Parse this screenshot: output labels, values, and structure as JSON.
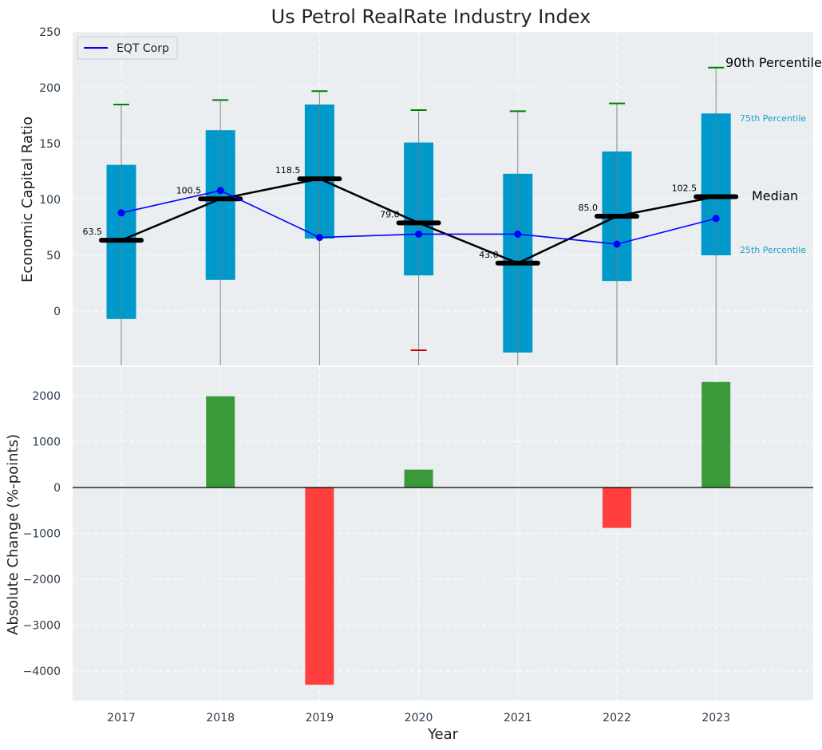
{
  "chart_data": [
    {
      "type": "box",
      "title": "Us Petrol RealRate Industry Index",
      "xlabel": "",
      "ylabel": "Economic Capital Ratio",
      "categories": [
        "2017",
        "2018",
        "2019",
        "2020",
        "2021",
        "2022",
        "2023"
      ],
      "ylim": [
        -48,
        250
      ],
      "yticks": [
        0,
        50,
        100,
        150,
        200,
        250
      ],
      "grid": true,
      "legend": {
        "position": "top-left",
        "entries": [
          "EQT Corp"
        ]
      },
      "boxes": {
        "q1": [
          -7,
          28,
          65,
          32,
          -37,
          27,
          50
        ],
        "q3": [
          131,
          162,
          185,
          151,
          123,
          143,
          177
        ],
        "median": [
          63.5,
          100.5,
          118.5,
          79.0,
          43.0,
          85.0,
          102.5
        ],
        "p90": [
          185,
          189,
          197,
          180,
          179,
          186,
          218
        ],
        "p10": [
          null,
          null,
          null,
          -35,
          null,
          null,
          null
        ],
        "median_labels": [
          "63.5",
          "100.5",
          "118.5",
          "79.0",
          "43.0",
          "85.0",
          "102.5"
        ]
      },
      "series": [
        {
          "name": "EQT Corp",
          "values": [
            88,
            108,
            66,
            69,
            69,
            60,
            83
          ],
          "color": "#0000ff"
        }
      ],
      "annotations": {
        "p90": "90th Percentile",
        "p75": "75th Percentile",
        "median": "Median",
        "p25": "25th Percentile"
      },
      "colors": {
        "box": "#0099cc",
        "median": "#000000",
        "whisker_top": "#008000",
        "whisker_bottom": "#cc0000"
      }
    },
    {
      "type": "bar",
      "xlabel": "Year",
      "ylabel": "Absolute Change (%-points)",
      "categories": [
        "2017",
        "2018",
        "2019",
        "2020",
        "2021",
        "2022",
        "2023"
      ],
      "values": [
        0,
        1990,
        -4300,
        390,
        0,
        -880,
        2300
      ],
      "ylim": [
        -4600,
        2600
      ],
      "yticks": [
        -4000,
        -3000,
        -2000,
        -1000,
        0,
        1000,
        2000
      ],
      "ytick_labels": [
        "−4000",
        "−3000",
        "−2000",
        "−1000",
        "0",
        "1000",
        "2000"
      ],
      "grid": true,
      "colors": {
        "positive": "#3a9a3a",
        "negative": "#ff3e3e"
      }
    }
  ]
}
